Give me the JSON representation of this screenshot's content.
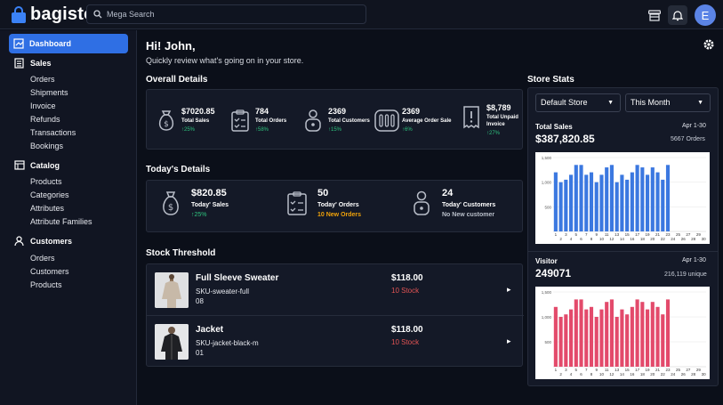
{
  "brand": {
    "name": "bagisto"
  },
  "search": {
    "placeholder": "Mega Search"
  },
  "user": {
    "initial": "E"
  },
  "sidebar": {
    "dashboard": "Dashboard",
    "sections": [
      {
        "label": "Sales",
        "items": [
          "Orders",
          "Shipments",
          "Invoice",
          "Refunds",
          "Transactions",
          "Bookings"
        ]
      },
      {
        "label": "Catalog",
        "items": [
          "Products",
          "Categories",
          "Attributes",
          "Attribute Families"
        ]
      },
      {
        "label": "Customers",
        "items": [
          "Orders",
          "Customers",
          "Products"
        ]
      }
    ]
  },
  "greeting": {
    "title": "Hi! John,",
    "subtitle": "Quickly review what's going on in your store."
  },
  "overall": {
    "heading": "Overall Details",
    "stats": [
      {
        "value": "$7020.85",
        "label": "Total Sales",
        "change": "↑25%",
        "icon": "money-bag-icon"
      },
      {
        "value": "784",
        "label": "Total Orders",
        "change": "↑58%",
        "icon": "clipboard-icon"
      },
      {
        "value": "2369",
        "label": "Total Customers",
        "change": "↑15%",
        "icon": "customer-icon"
      },
      {
        "value": "2369",
        "label": "Average Order Sale",
        "change": "↑6%",
        "icon": "bars-icon"
      },
      {
        "value": "$8,789",
        "label": "Total Unpaid Invoice",
        "change": "↑27%",
        "icon": "invoice-icon"
      }
    ]
  },
  "today": {
    "heading": "Today's Details",
    "stats": [
      {
        "value": "$820.85",
        "label": "Today' Sales",
        "note": "↑25%",
        "note_color": "#2ec27e",
        "icon": "money-bag-icon"
      },
      {
        "value": "50",
        "label": "Today' Orders",
        "note": "10 New Orders",
        "note_color": "#f0a20b",
        "icon": "clipboard-icon"
      },
      {
        "value": "24",
        "label": "Today' Customers",
        "note": "No New customer",
        "note_color": "#b9bfca",
        "icon": "customer-icon"
      }
    ]
  },
  "stock": {
    "heading": "Stock Threshold",
    "products": [
      {
        "name": "Full Sleeve Sweater",
        "sku": "SKU-sweater-full",
        "num": "08",
        "price": "$118.00",
        "stock": "10 Stock"
      },
      {
        "name": "Jacket",
        "sku": "SKU-jacket-black-m",
        "num": "01",
        "price": "$118.00",
        "stock": "10 Stock"
      }
    ]
  },
  "store_stats": {
    "heading": "Store Stats",
    "store_select": "Default Store",
    "period_select": "This Month",
    "sales": {
      "title": "Total Sales",
      "range": "Apr 1-30",
      "value": "$387,820.85",
      "count": "5667 Orders"
    },
    "visitors": {
      "title": "Visitor",
      "range": "Apr 1-30",
      "value": "249071",
      "count": "216,119 unique"
    }
  },
  "chart_data": [
    {
      "type": "bar",
      "series": [
        {
          "values": [
            1200,
            1000,
            1050,
            1150,
            1350,
            1350,
            1150,
            1200,
            1000,
            1150,
            1300,
            1350,
            1000,
            1150,
            1050,
            1200,
            1350,
            1300,
            1150,
            1300,
            1200,
            1050,
            1350,
            0,
            0,
            0,
            0,
            0,
            0,
            0
          ]
        }
      ],
      "categories": [
        "1",
        "2",
        "3",
        "4",
        "5",
        "6",
        "7",
        "8",
        "9",
        "10",
        "11",
        "12",
        "13",
        "14",
        "15",
        "16",
        "17",
        "18",
        "19",
        "20",
        "21",
        "22",
        "23",
        "24",
        "25",
        "26",
        "27",
        "28",
        "29",
        "30"
      ],
      "yticks": [
        "1,500",
        "1,000",
        "500"
      ],
      "ylim": [
        0,
        1500
      ],
      "color": "#3b78e0"
    },
    {
      "type": "bar",
      "series": [
        {
          "values": [
            1200,
            1000,
            1050,
            1150,
            1350,
            1350,
            1150,
            1200,
            1000,
            1150,
            1300,
            1350,
            1000,
            1150,
            1050,
            1200,
            1350,
            1300,
            1150,
            1300,
            1200,
            1050,
            1350,
            0,
            0,
            0,
            0,
            0,
            0,
            0
          ]
        }
      ],
      "categories": [
        "1",
        "2",
        "3",
        "4",
        "5",
        "6",
        "7",
        "8",
        "9",
        "10",
        "11",
        "12",
        "13",
        "14",
        "15",
        "16",
        "17",
        "18",
        "19",
        "20",
        "21",
        "22",
        "23",
        "24",
        "25",
        "26",
        "27",
        "28",
        "29",
        "30"
      ],
      "yticks": [
        "1,500",
        "1,000",
        "500"
      ],
      "ylim": [
        0,
        1500
      ],
      "color": "#e34a6b"
    }
  ]
}
